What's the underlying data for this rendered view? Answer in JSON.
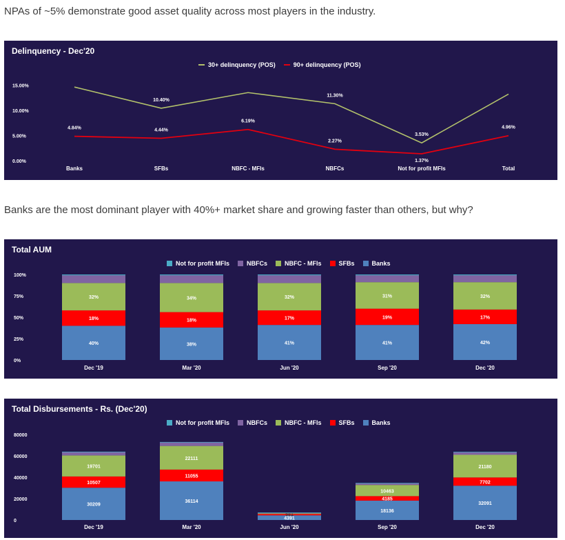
{
  "captions": {
    "first": "NPAs of ~5% demonstrate good asset quality across most players in the industry.",
    "second": "Banks are the most dominant player with 40%+ market share and growing faster than others, but why?"
  },
  "colors": {
    "panel_bg": "#21174b",
    "line30": "#b3c26b",
    "line90": "#e3000f",
    "not_for_profit": "#4bacc6",
    "nbfcs": "#8064a2",
    "nbfc_mfis": "#9bbb59",
    "sfbs": "#ff0000",
    "banks": "#4f81bd"
  },
  "charts": {
    "delinquency": {
      "title": "Delinquency - Dec'20",
      "legend": [
        "30+ delinquency (POS)",
        "90+ delinquency (POS)"
      ]
    },
    "aum": {
      "title": "Total AUM",
      "legend": [
        "Not for profit MFIs",
        "NBFCs",
        "NBFC - MFIs",
        "SFBs",
        "Banks"
      ]
    },
    "disb": {
      "title": "Total Disbursements - Rs. (Dec'20)",
      "legend": [
        "Not for profit MFIs",
        "NBFCs",
        "NBFC - MFIs",
        "SFBs",
        "Banks"
      ]
    }
  },
  "chart_data": [
    {
      "type": "line",
      "title": "Delinquency - Dec'20",
      "categories": [
        "Banks",
        "SFBs",
        "NBFC - MFIs",
        "NBFCs",
        "Not for profit MFIs",
        "Total"
      ],
      "yticks": [
        "0.00%",
        "5.00%",
        "10.00%",
        "15.00%"
      ],
      "ylim": [
        0,
        17.5
      ],
      "series": [
        {
          "name": "30+ delinquency (POS)",
          "values": [
            14.6,
            10.4,
            13.5,
            11.3,
            3.53,
            13.2
          ],
          "labels": [
            "",
            "10.40%",
            "",
            "11.30%",
            "3.53%",
            ""
          ]
        },
        {
          "name": "90+ delinquency (POS)",
          "values": [
            4.84,
            4.44,
            6.19,
            2.27,
            1.37,
            4.96
          ],
          "labels": [
            "4.84%",
            "4.44%",
            "6.19%",
            "2.27%",
            "1.37%",
            "4.96%"
          ]
        }
      ]
    },
    {
      "type": "bar",
      "stacked": true,
      "title": "Total AUM",
      "categories": [
        "Dec '19",
        "Mar '20",
        "Jun '20",
        "Sep '20",
        "Dec '20"
      ],
      "yticks": [
        "0%",
        "25%",
        "50%",
        "75%",
        "100%"
      ],
      "ylim": [
        0,
        100
      ],
      "series": [
        {
          "name": "Banks",
          "values": [
            40,
            38,
            41,
            41,
            42
          ],
          "labels": [
            "40%",
            "38%",
            "41%",
            "41%",
            "42%"
          ]
        },
        {
          "name": "SFBs",
          "values": [
            18,
            18,
            17,
            19,
            17
          ],
          "labels": [
            "18%",
            "18%",
            "17%",
            "19%",
            "17%"
          ]
        },
        {
          "name": "NBFC - MFIs",
          "values": [
            32,
            34,
            32,
            31,
            32
          ],
          "labels": [
            "32%",
            "34%",
            "32%",
            "31%",
            "32%"
          ]
        },
        {
          "name": "NBFCs",
          "values": [
            9,
            9,
            9,
            8,
            8
          ],
          "labels": [
            "",
            "",
            "",
            "",
            ""
          ]
        },
        {
          "name": "Not for profit MFIs",
          "values": [
            1,
            1,
            1,
            1,
            1
          ],
          "labels": [
            "",
            "",
            "",
            "",
            ""
          ]
        }
      ]
    },
    {
      "type": "bar",
      "stacked": true,
      "title": "Total Disbursements - Rs. (Dec'20)",
      "categories": [
        "Dec '19",
        "Mar '20",
        "Jun '20",
        "Sep '20",
        "Dec '20"
      ],
      "yticks": [
        "0",
        "20000",
        "40000",
        "60000",
        "80000"
      ],
      "ylim": [
        0,
        80000
      ],
      "series": [
        {
          "name": "Banks",
          "values": [
            30209,
            36114,
            4391,
            18136,
            32091
          ],
          "labels": [
            "30209",
            "36114",
            "4391",
            "18136",
            "32091"
          ]
        },
        {
          "name": "SFBs",
          "values": [
            10507,
            11055,
            1200,
            4185,
            7702
          ],
          "labels": [
            "10507",
            "11055",
            "",
            "4185",
            "7702"
          ]
        },
        {
          "name": "NBFC - MFIs",
          "values": [
            19701,
            22111,
            581,
            10463,
            21180
          ],
          "labels": [
            "19701",
            "22111",
            "581",
            "10463",
            "21180"
          ]
        },
        {
          "name": "NBFCs",
          "values": [
            3200,
            3400,
            700,
            1700,
            2600
          ],
          "labels": [
            "",
            "",
            "",
            "",
            ""
          ]
        },
        {
          "name": "Not for profit MFIs",
          "values": [
            300,
            300,
            100,
            200,
            200
          ],
          "labels": [
            "",
            "",
            "",
            "",
            ""
          ]
        }
      ]
    }
  ]
}
